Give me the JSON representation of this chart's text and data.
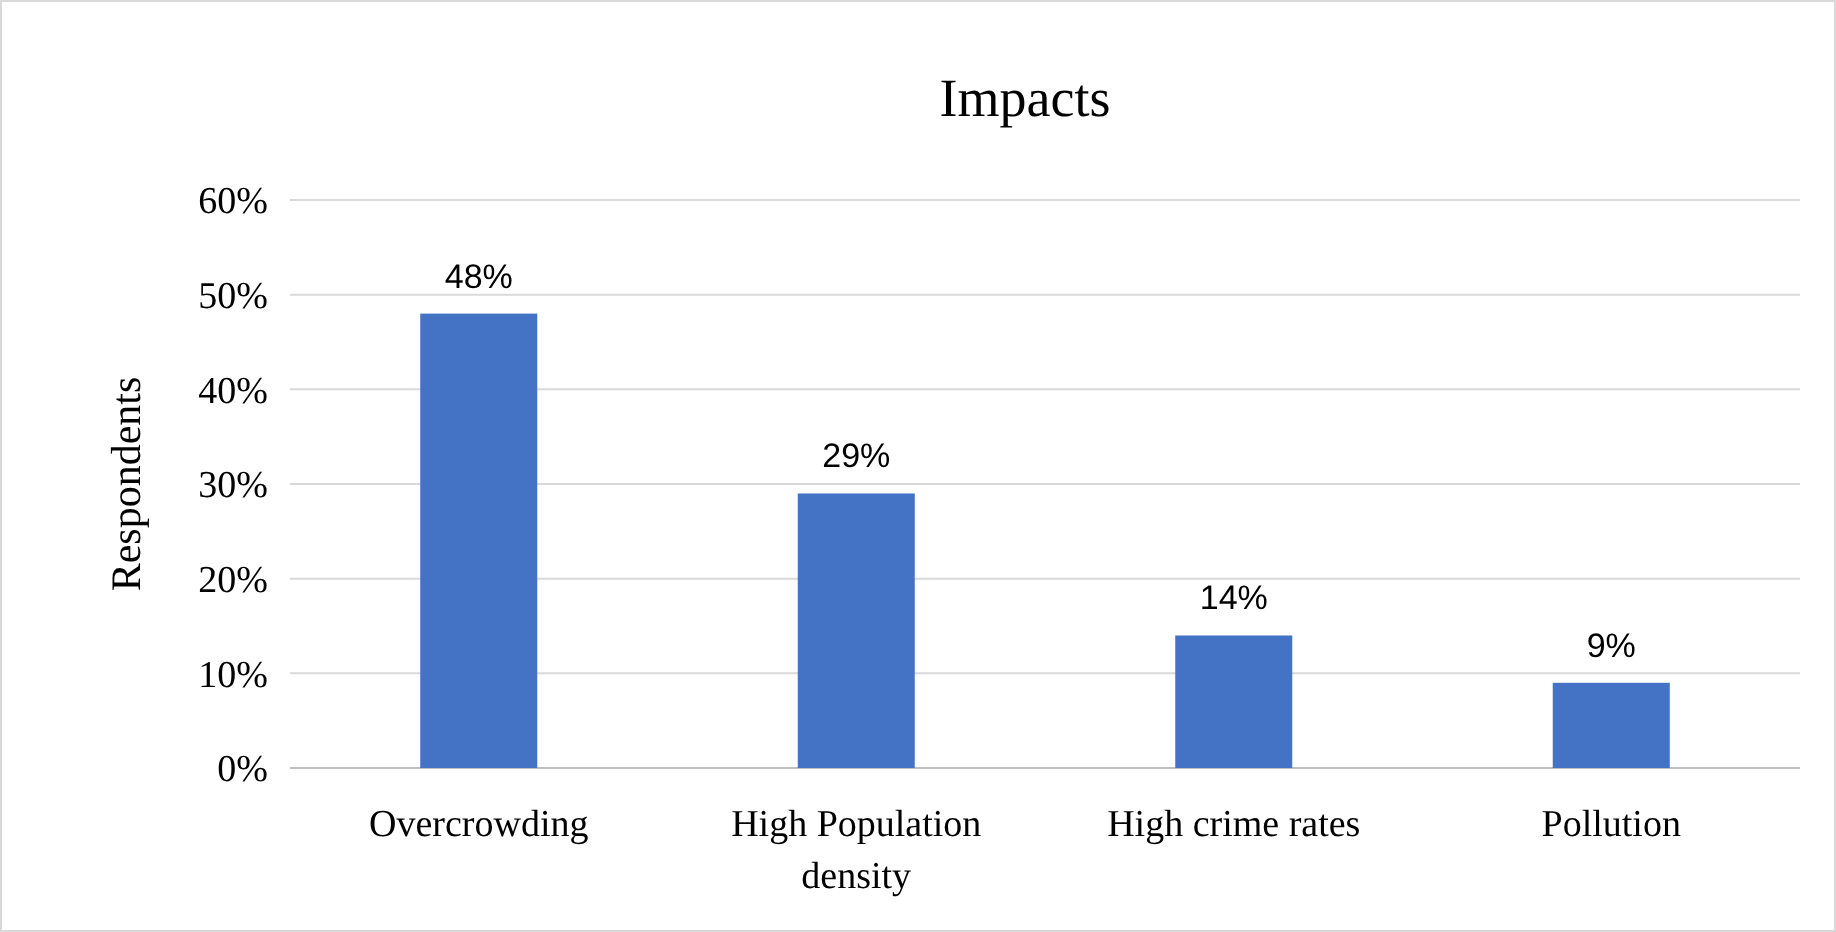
{
  "chart_data": {
    "type": "bar",
    "title": "Impacts",
    "ylabel": "Respondents",
    "categories": [
      "Overcrowding",
      "High Population density",
      "High crime rates",
      "Pollution"
    ],
    "values": [
      48,
      29,
      14,
      9
    ],
    "color": "#4472c4",
    "value_labels": [
      "48%",
      "29%",
      "14%",
      "9%"
    ],
    "ylim": [
      0,
      60
    ],
    "yticks": [
      {
        "value": 0,
        "label": "0%"
      },
      {
        "value": 10,
        "label": "10%"
      },
      {
        "value": 20,
        "label": "20%"
      },
      {
        "value": 30,
        "label": "30%"
      },
      {
        "value": 40,
        "label": "40%"
      },
      {
        "value": 50,
        "label": "50%"
      },
      {
        "value": 60,
        "label": "60%"
      }
    ],
    "grid": "y"
  }
}
